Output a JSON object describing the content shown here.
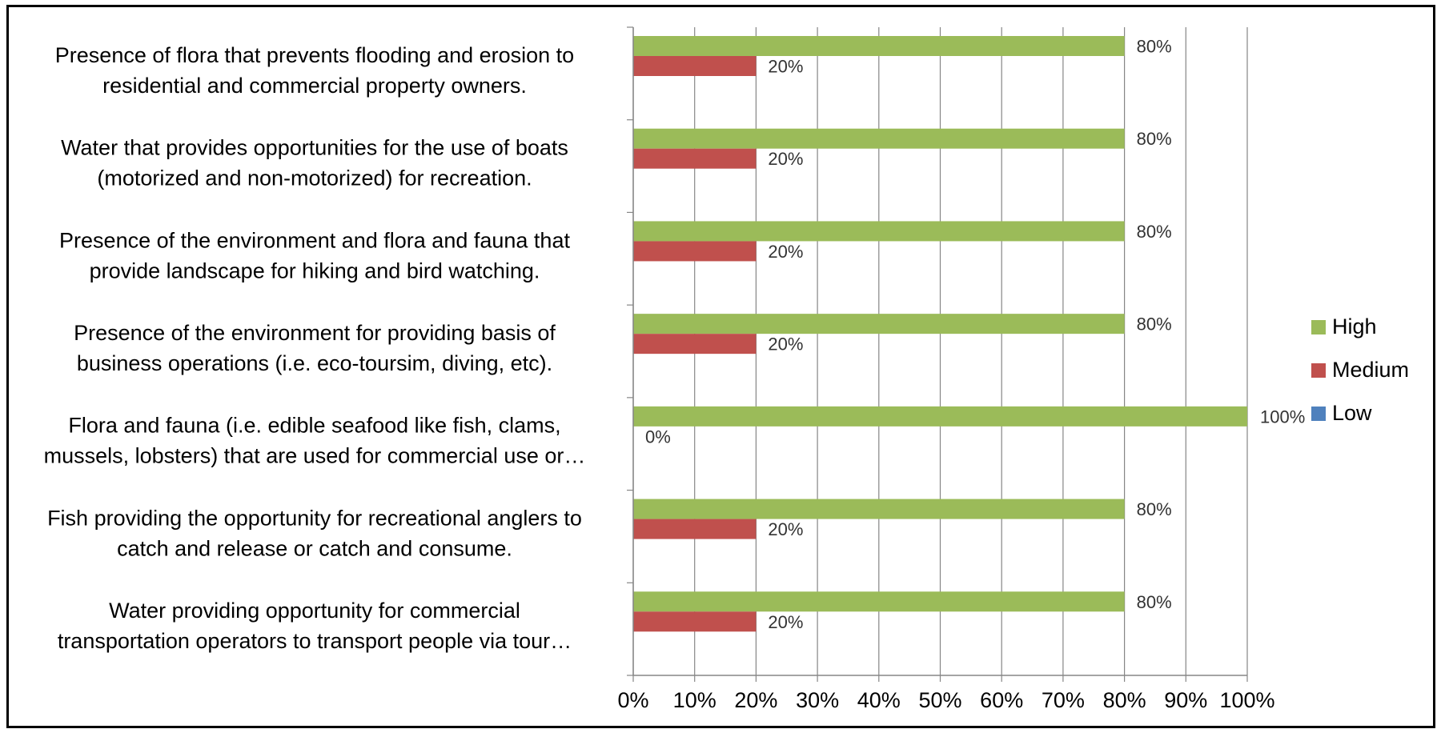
{
  "chart_data": {
    "type": "bar",
    "orientation": "horizontal",
    "title": "",
    "xlabel": "",
    "ylabel": "",
    "xlim": [
      0,
      100
    ],
    "x_ticks": [
      "0%",
      "10%",
      "20%",
      "30%",
      "40%",
      "50%",
      "60%",
      "70%",
      "80%",
      "90%",
      "100%"
    ],
    "grid": "vertical",
    "legend_position": "right",
    "categories": [
      [
        "Presence of flora that prevents flooding and erosion to",
        "residential and commercial property owners."
      ],
      [
        "Water that provides opportunities for the use of boats",
        "(motorized and non-motorized) for recreation."
      ],
      [
        "Presence of the environment and flora and fauna that",
        "provide landscape for hiking and bird watching."
      ],
      [
        "Presence of the environment for providing basis of",
        "business operations (i.e. eco-toursim, diving, etc)."
      ],
      [
        "Flora and fauna (i.e. edible seafood like fish, clams,",
        "mussels, lobsters) that are used for commercial use or…"
      ],
      [
        "Fish providing the opportunity for recreational anglers to",
        "catch and release or catch and consume."
      ],
      [
        "Water providing opportunity for commercial",
        "transportation operators to transport people via tour…"
      ]
    ],
    "series": [
      {
        "name": "High",
        "color": "#9bbb59",
        "values": [
          80,
          80,
          80,
          80,
          100,
          80,
          80
        ],
        "labels": [
          "80%",
          "80%",
          "80%",
          "80%",
          "100%",
          "80%",
          "80%"
        ]
      },
      {
        "name": "Medium",
        "color": "#c0504d",
        "values": [
          20,
          20,
          20,
          20,
          0,
          20,
          20
        ],
        "labels": [
          "20%",
          "20%",
          "20%",
          "20%",
          "0%",
          "20%",
          "20%"
        ]
      },
      {
        "name": "Low",
        "color": "#4f81bd",
        "values": [
          0,
          0,
          0,
          0,
          0,
          0,
          0
        ],
        "labels": []
      }
    ]
  }
}
